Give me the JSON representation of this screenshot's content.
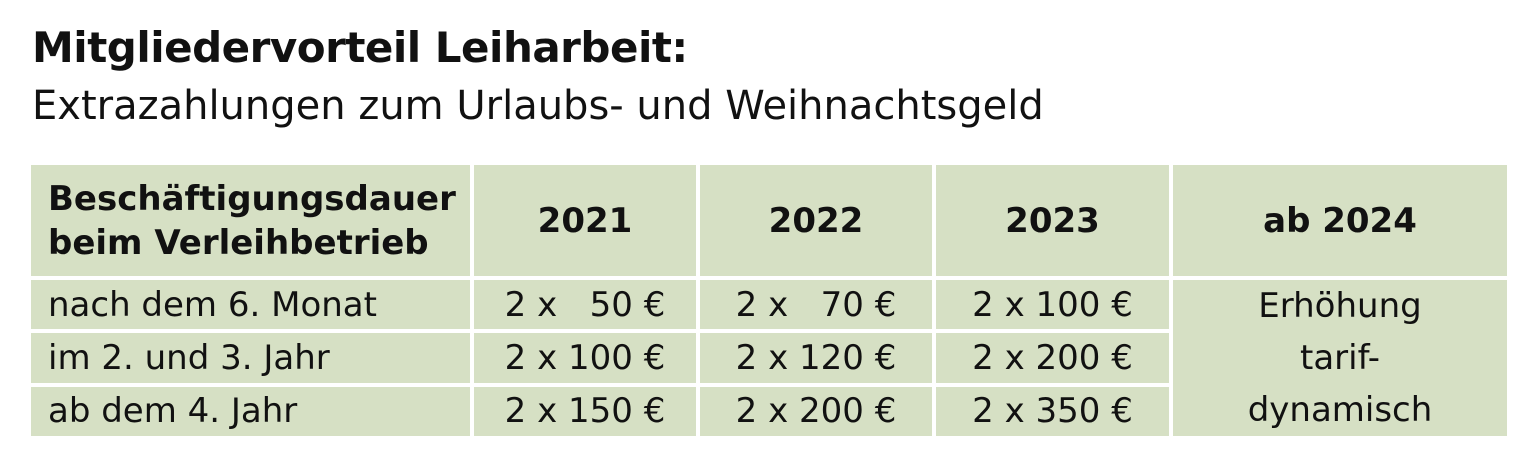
{
  "title": "Mitgliedervorteil Leiharbeit:",
  "subtitle": "Extrazahlungen zum Urlaubs- und Weihnachtsgeld",
  "table": {
    "label_header_line1": "Beschäftigungsdauer",
    "label_header_line2": "beim Verleihbetrieb",
    "year_headers": [
      "2021",
      "2022",
      "2023",
      "ab 2024"
    ],
    "rows": [
      {
        "label": "nach dem 6. Monat",
        "values": [
          "2 x   50 €",
          "2 x   70 €",
          "2 x 100 €"
        ]
      },
      {
        "label": "im 2. und 3. Jahr",
        "values": [
          "2 x 100 €",
          "2 x 120 €",
          "2 x 200 €"
        ]
      },
      {
        "label": "ab dem 4. Jahr",
        "values": [
          "2 x 150 €",
          "2 x 200 €",
          "2 x 350 €"
        ]
      }
    ],
    "note_lines": [
      "Erhöhung",
      "tarif-",
      "dynamisch"
    ]
  },
  "colors": {
    "cell_background": "#d6e0c4",
    "grid_lines": "#ffffff",
    "text": "#111111"
  }
}
